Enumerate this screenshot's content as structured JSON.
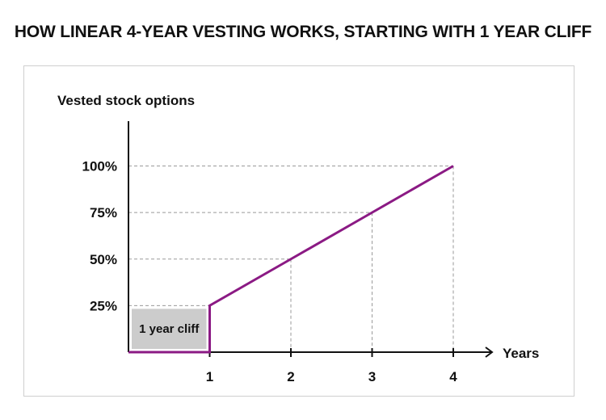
{
  "title": "HOW LINEAR 4-YEAR VESTING WORKS, STARTING WITH 1 YEAR CLIFF",
  "colors": {
    "line": "#8b1a84",
    "axis": "#111111",
    "grid": "#9a9a9a",
    "cliff_fill": "#cccccc",
    "frame": "#cfcfcf"
  },
  "chart_data": {
    "type": "line",
    "ylabel": "Vested stock options",
    "xlabel": "Years",
    "x_ticks": [
      "1",
      "2",
      "3",
      "4"
    ],
    "y_ticks": [
      "25%",
      "50%",
      "75%",
      "100%"
    ],
    "xlim": [
      0,
      4
    ],
    "series": [
      {
        "points": [
          {
            "x": 0,
            "y": 0
          },
          {
            "x": 1,
            "y": 0
          },
          {
            "x": 1,
            "y": 25
          },
          {
            "x": 2,
            "y": 50
          },
          {
            "x": 3,
            "y": 75
          },
          {
            "x": 4,
            "y": 100
          }
        ]
      }
    ],
    "annotations": [
      {
        "label": "1 year cliff",
        "x_range": [
          0,
          1
        ],
        "y_range": [
          0,
          25
        ]
      }
    ],
    "grid": "dashed guides at tick values"
  }
}
